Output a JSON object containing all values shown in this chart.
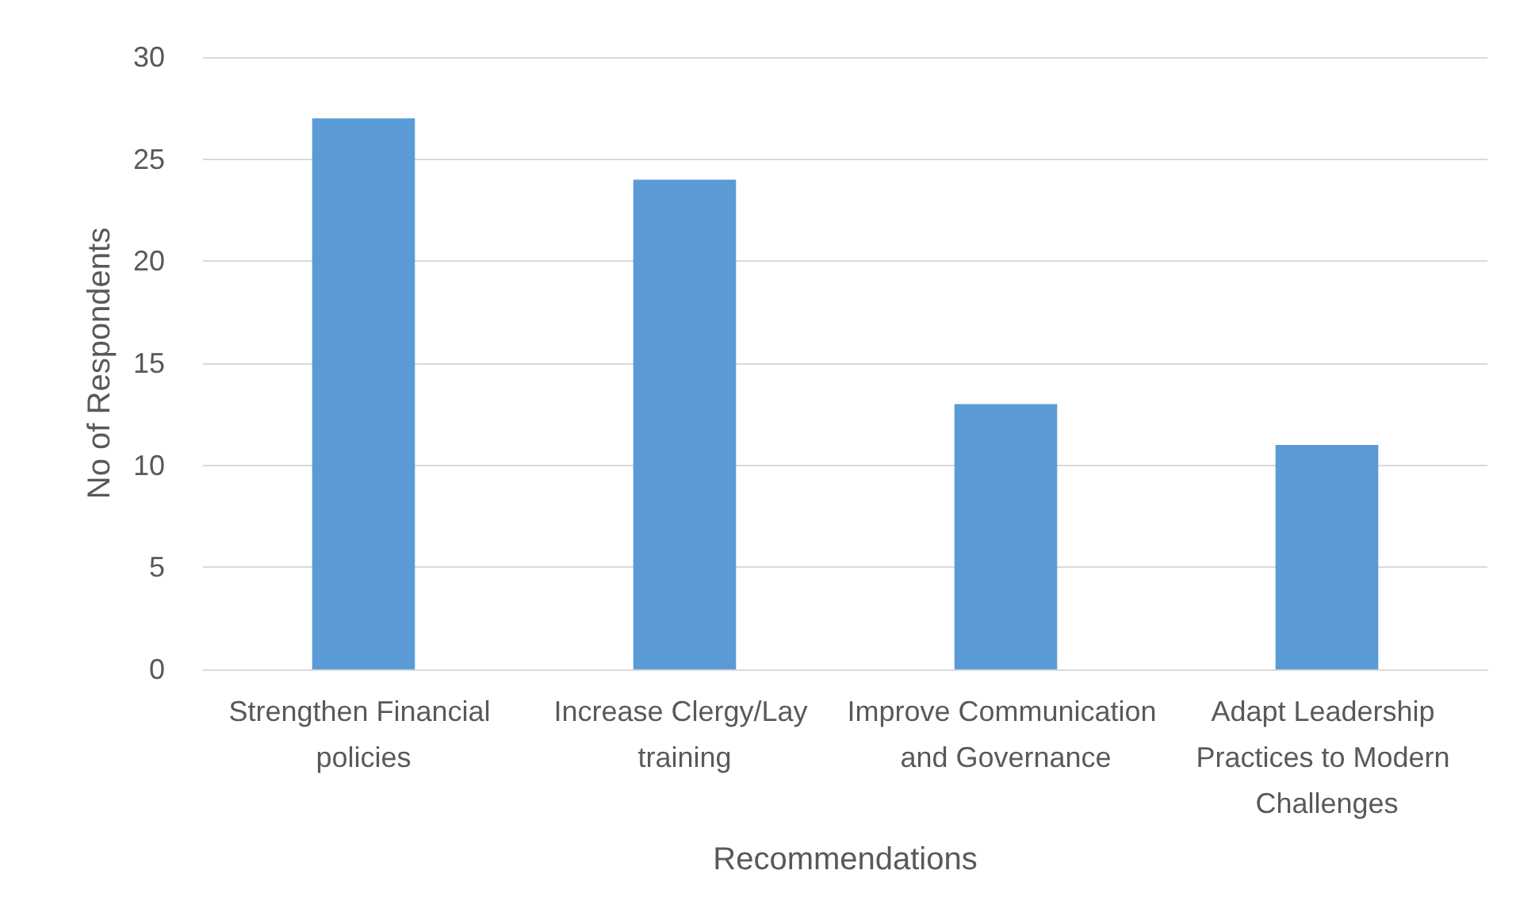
{
  "chart_data": {
    "type": "bar",
    "categories": [
      "Strengthen Financial policies",
      "Increase Clergy/Lay training",
      "Improve Communication and Governance",
      "Adapt Leadership Practices to Modern Challenges"
    ],
    "values": [
      27,
      24,
      13,
      11
    ],
    "color": "#5b9bd5",
    "xlabel": "Recommendations",
    "ylabel": "No of Respondents",
    "ylim": [
      0,
      30
    ],
    "yticks": [
      0,
      5,
      10,
      15,
      20,
      25,
      30
    ],
    "grid": "y"
  }
}
